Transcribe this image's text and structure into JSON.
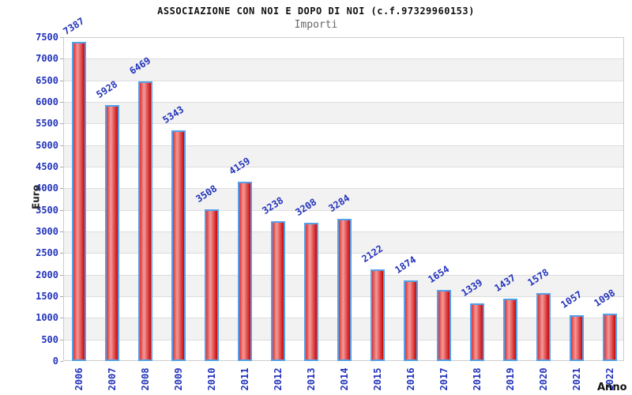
{
  "chart_data": {
    "type": "bar",
    "title": "ASSOCIAZIONE CON NOI E DOPO DI NOI (c.f.97329960153)",
    "subtitle": "Importi",
    "xlabel": "Anno",
    "ylabel": "Euro",
    "categories": [
      "2006",
      "2007",
      "2008",
      "2009",
      "2010",
      "2011",
      "2012",
      "2013",
      "2014",
      "2015",
      "2016",
      "2017",
      "2018",
      "2019",
      "2020",
      "2021",
      "2022"
    ],
    "values": [
      7387,
      5928,
      6469,
      5343,
      3508,
      4159,
      3238,
      3208,
      3284,
      2122,
      1874,
      1654,
      1339,
      1437,
      1578,
      1057,
      1098
    ],
    "ylim": [
      0,
      7500
    ],
    "ytick_step": 500,
    "grid": "horizontal-bands-alternating",
    "legend": "none",
    "value_labels_rotated": true,
    "colors": {
      "bar_gradient_left": "#dd3333",
      "bar_gradient_highlight": "#f49999",
      "bar_gradient_right": "#cc0505",
      "bar_border": "#55a0e8",
      "label_text": "#2233bb",
      "title_text": "#111111",
      "subtitle_text": "#666666",
      "band_fill": "#f2f2f2",
      "grid_line": "#dddddd",
      "plot_border": "#cccccc",
      "tick_mark": "#aaaaaa"
    }
  }
}
